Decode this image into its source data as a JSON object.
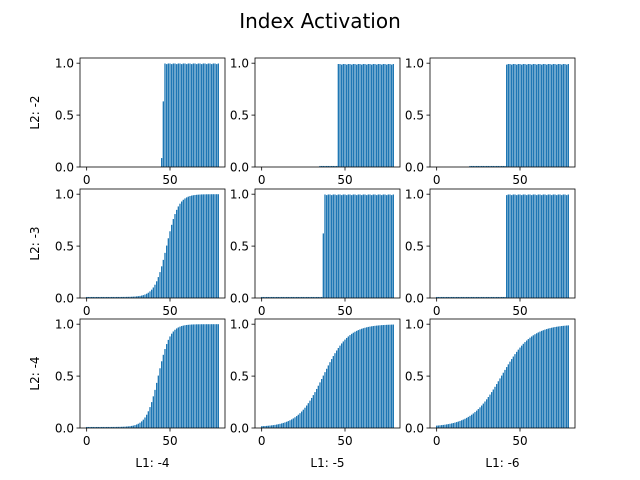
{
  "chart_data": {
    "type": "bar",
    "title": "Index Activation",
    "bar_color": "#1f77b4",
    "x_range": [
      0,
      79
    ],
    "xticks": [
      0,
      50
    ],
    "yticks": [
      "0.0",
      "0.5",
      "1.0"
    ],
    "ylim": [
      0,
      1.05
    ],
    "col_labels": [
      "L1: -4",
      "L1: -5",
      "L1: -6"
    ],
    "row_labels": [
      "L2: -2",
      "L2: -3",
      "L2: -4"
    ],
    "panels": [
      {
        "row": 0,
        "col": 0,
        "kind": "step",
        "start": 45,
        "pre_level": 0.0,
        "partial": [
          [
            45,
            0.09
          ],
          [
            46,
            0.63
          ]
        ],
        "post_level": 0.995
      },
      {
        "row": 0,
        "col": 1,
        "kind": "step",
        "start": 46,
        "pre_level": 0.0,
        "noise": [
          [
            35,
            45,
            0.01
          ]
        ],
        "partial": [],
        "post_level": 0.99
      },
      {
        "row": 0,
        "col": 2,
        "kind": "step",
        "start": 42,
        "pre_level": 0.0,
        "noise": [
          [
            20,
            41,
            0.01
          ]
        ],
        "partial": [],
        "post_level": 0.99
      },
      {
        "row": 1,
        "col": 0,
        "kind": "sigmoid",
        "center": 48,
        "width": 3.5,
        "floor": 0.01
      },
      {
        "row": 1,
        "col": 1,
        "kind": "step",
        "start": 37,
        "pre_level": 0.01,
        "partial": [
          [
            37,
            0.62
          ]
        ],
        "post_level": 0.995
      },
      {
        "row": 1,
        "col": 2,
        "kind": "step",
        "start": 42,
        "pre_level": 0.01,
        "partial": [],
        "post_level": 0.995
      },
      {
        "row": 2,
        "col": 0,
        "kind": "sigmoid",
        "center": 43,
        "width": 3.5,
        "floor": 0.01
      },
      {
        "row": 2,
        "col": 1,
        "kind": "sigmoid",
        "center": 37,
        "width": 7.5,
        "floor": 0.01
      },
      {
        "row": 2,
        "col": 2,
        "kind": "sigmoid",
        "center": 39,
        "width": 9.0,
        "floor": 0.01
      }
    ]
  }
}
